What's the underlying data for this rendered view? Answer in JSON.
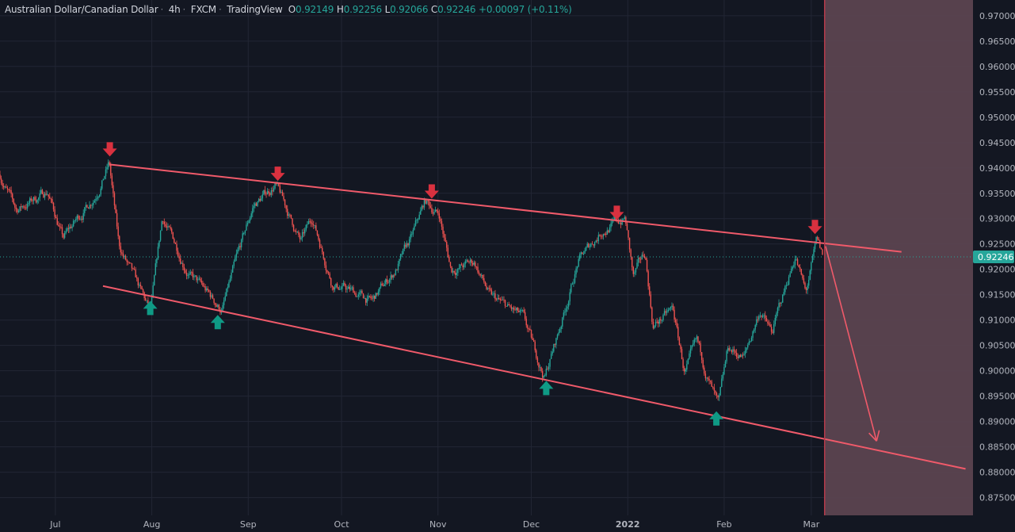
{
  "header": {
    "symbol": "Australian Dollar/Canadian Dollar",
    "interval": "4h",
    "exchange": "FXCM",
    "source": "TradingView",
    "o_label": "O",
    "o": "0.92149",
    "h_label": "H",
    "h": "0.92256",
    "l_label": "L",
    "l": "0.92066",
    "c_label": "C",
    "c": "0.92246",
    "change": "+0.00097 (+0.11%)"
  },
  "colors": {
    "background": "#131722",
    "grid": "#222634",
    "up": "#26a69a",
    "down": "#ef5350",
    "trendline": "#f05a6a",
    "down_marker": "#d9313f",
    "up_marker": "#0f9a85",
    "shade": "#5b4350",
    "axis_text": "#b2b5be"
  },
  "chart_data": {
    "type": "candlestick",
    "title": "Australian Dollar/Canadian Dollar 4h",
    "x_unit": "days since 2021-07-01",
    "xlim": [
      -17.8,
      295
    ],
    "ylim": [
      0.8715,
      0.9731
    ],
    "y_ticks": [
      "0.97000",
      "0.96500",
      "0.96000",
      "0.95500",
      "0.95000",
      "0.94500",
      "0.94000",
      "0.93500",
      "0.93000",
      "0.92500",
      "0.92000",
      "0.91500",
      "0.91000",
      "0.90500",
      "0.90000",
      "0.89500",
      "0.89000",
      "0.88500",
      "0.88000",
      "0.87500"
    ],
    "x_ticks": [
      {
        "label": "Jul",
        "day": 0
      },
      {
        "label": "Aug",
        "day": 31
      },
      {
        "label": "Sep",
        "day": 62
      },
      {
        "label": "Oct",
        "day": 92
      },
      {
        "label": "Nov",
        "day": 123
      },
      {
        "label": "Dec",
        "day": 153
      },
      {
        "label": "2022",
        "day": 184
      },
      {
        "label": "Feb",
        "day": 215
      },
      {
        "label": "Mar",
        "day": 243
      }
    ],
    "last_price": "0.92246",
    "price_path": [
      [
        -17.8,
        0.9387
      ],
      [
        -12.7,
        0.9316
      ],
      [
        -2.5,
        0.9355
      ],
      [
        2.5,
        0.926
      ],
      [
        12.7,
        0.9347
      ],
      [
        17.3,
        0.941
      ],
      [
        20.4,
        0.9245
      ],
      [
        30.6,
        0.9112
      ],
      [
        34.4,
        0.93
      ],
      [
        43.3,
        0.919
      ],
      [
        53.5,
        0.912
      ],
      [
        63.6,
        0.9324
      ],
      [
        70.7,
        0.9368
      ],
      [
        78.9,
        0.9253
      ],
      [
        82.7,
        0.93
      ],
      [
        89,
        0.9175
      ],
      [
        101.8,
        0.9136
      ],
      [
        109.4,
        0.9199
      ],
      [
        114.5,
        0.926
      ],
      [
        118.8,
        0.9332
      ],
      [
        123.4,
        0.9308
      ],
      [
        127.2,
        0.9199
      ],
      [
        134.8,
        0.9214
      ],
      [
        139.9,
        0.9144
      ],
      [
        150.1,
        0.9104
      ],
      [
        157.2,
        0.8987
      ],
      [
        161.6,
        0.9073
      ],
      [
        168,
        0.9214
      ],
      [
        175.6,
        0.9277
      ],
      [
        183.2,
        0.93
      ],
      [
        185.8,
        0.9183
      ],
      [
        189.6,
        0.923
      ],
      [
        192.1,
        0.9089
      ],
      [
        198.5,
        0.912
      ],
      [
        202.3,
        0.8995
      ],
      [
        206.2,
        0.905
      ],
      [
        213.2,
        0.8924
      ],
      [
        216.3,
        0.9042
      ],
      [
        221.4,
        0.9026
      ],
      [
        226.5,
        0.912
      ],
      [
        230.3,
        0.9073
      ],
      [
        237.9,
        0.923
      ],
      [
        241.2,
        0.9151
      ],
      [
        244.8,
        0.9253
      ],
      [
        246.8,
        0.9222
      ]
    ],
    "upper_trendline": [
      [
        17.3,
        0.94069
      ],
      [
        272,
        0.92345
      ]
    ],
    "lower_trendline": [
      [
        15.3,
        0.91671
      ],
      [
        292.6,
        0.88066
      ]
    ],
    "projection_arrow": [
      [
        247.6,
        0.92455
      ],
      [
        264,
        0.88614
      ]
    ],
    "forecast_zone_start_day": 247.3,
    "down_markers": [
      [
        17.5,
        0.9435
      ],
      [
        71.5,
        0.9387
      ],
      [
        121,
        0.9352
      ],
      [
        180.5,
        0.931
      ],
      [
        244.2,
        0.9282
      ]
    ],
    "up_markers": [
      [
        30.5,
        0.9124
      ],
      [
        52.2,
        0.9096
      ],
      [
        157.8,
        0.8966
      ],
      [
        212.5,
        0.8906
      ]
    ]
  }
}
